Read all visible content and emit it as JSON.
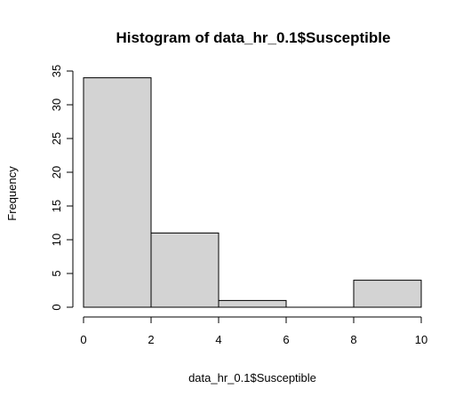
{
  "chart_data": {
    "type": "bar",
    "title": "Histogram of data_hr_0.1$Susceptible",
    "xlabel": "data_hr_0.1$Susceptible",
    "ylabel": "Frequency",
    "bins": [
      [
        0,
        2
      ],
      [
        2,
        4
      ],
      [
        4,
        6
      ],
      [
        6,
        8
      ],
      [
        8,
        10
      ]
    ],
    "values": [
      34,
      11,
      1,
      0,
      4
    ],
    "xlim": [
      0,
      10
    ],
    "ylim": [
      0,
      35
    ],
    "xticks": [
      "0",
      "2",
      "4",
      "6",
      "8",
      "10"
    ],
    "yticks": [
      "0",
      "5",
      "10",
      "15",
      "20",
      "25",
      "30",
      "35"
    ],
    "bar_fill": "#d3d3d3",
    "bar_stroke": "#000000",
    "grid": false,
    "legend": "none"
  }
}
